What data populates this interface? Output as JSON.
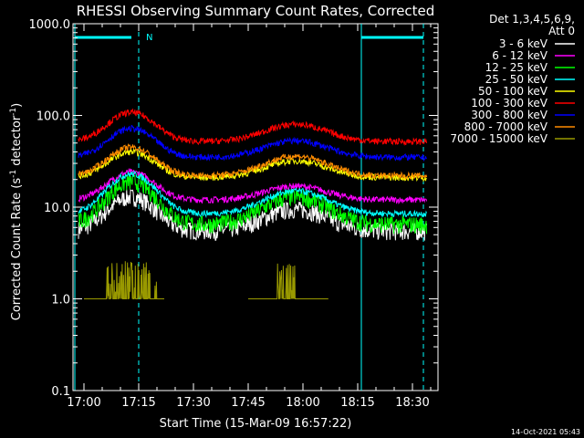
{
  "chart_data": {
    "type": "line",
    "title": "RHESSI Observing Summary Count Rates, Corrected",
    "xlabel": "Start Time (15-Mar-09 16:57:22)",
    "ylabel_main": "Corrected Count Rate (s",
    "ylabel_sup": "-1",
    "ylabel_mid": " detector",
    "ylabel_sup2": "-1",
    "ylabel_end": ")",
    "yscale": "log",
    "ylim": [
      0.1,
      1000
    ],
    "y_ticks": [
      "1000.0",
      "100.0",
      "10.0",
      "1.0",
      "0.1"
    ],
    "x_ticks": [
      "17:00",
      "17:15",
      "17:30",
      "17:45",
      "18:00",
      "18:15",
      "18:30"
    ],
    "x_minutes_range": [
      16.95,
      37.4
    ],
    "legend_header": [
      "Det 1,3,4,5,6,9,",
      "Att 0"
    ],
    "legend_placement": "right",
    "series": [
      {
        "name": "3 - 6 keV",
        "color": "#ffffff",
        "base": 5.5,
        "peak1": 13,
        "peak2": 9.5
      },
      {
        "name": "6 - 12 keV",
        "color": "#ff00ff",
        "base": 12,
        "peak1": 24,
        "peak2": 17
      },
      {
        "name": "12 - 25 keV",
        "color": "#00ff00",
        "base": 6.5,
        "peak1": 19,
        "peak2": 13
      },
      {
        "name": "25 - 50 keV",
        "color": "#00ffff",
        "base": 8.5,
        "peak1": 23,
        "peak2": 15
      },
      {
        "name": "50 - 100 keV",
        "color": "#ffff00",
        "base": 21,
        "peak1": 40,
        "peak2": 32
      },
      {
        "name": "100 - 300 keV",
        "color": "#ff0000",
        "base": 52,
        "peak1": 108,
        "peak2": 80
      },
      {
        "name": "300 - 800 keV",
        "color": "#0000ff",
        "base": 35,
        "peak1": 72,
        "peak2": 53
      },
      {
        "name": "800 - 7000 keV",
        "color": "#ff8c00",
        "base": 22,
        "peak1": 45,
        "peak2": 36
      },
      {
        "name": "7000 - 15000 keV",
        "color": "#999900",
        "base": 1.0,
        "peak1": 2.8,
        "peak2": 2.5
      }
    ],
    "annotations": [
      {
        "text": "N",
        "time": "17:15"
      }
    ],
    "vertical_markers": [
      {
        "time": "16:57:30",
        "style": "solid",
        "color": "#00ffff"
      },
      {
        "time": "17:15",
        "style": "dashed",
        "color": "#00ffff"
      },
      {
        "time": "18:16",
        "style": "solid",
        "color": "#00ffff"
      },
      {
        "time": "18:33",
        "style": "dashed",
        "color": "#00ffff"
      }
    ],
    "timestamp": "14-Oct-2021 05:43"
  }
}
